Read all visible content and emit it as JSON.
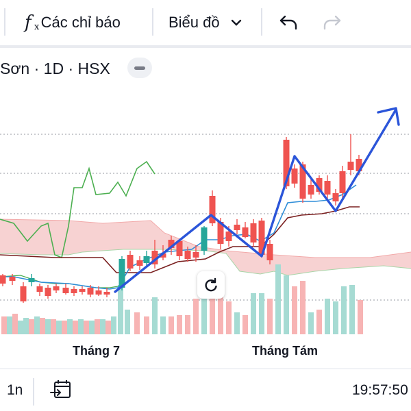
{
  "toolbar": {
    "indicators_label": "Các chỉ báo",
    "chart_type_label": "Biểu đồ",
    "icons": [
      "fx-icon",
      "chevron-down-icon",
      "undo-icon",
      "redo-icon"
    ]
  },
  "symbol": {
    "text": "Sơn · 1D · HSX"
  },
  "chart": {
    "x_labels": [
      "Tháng 7",
      "Tháng Tám"
    ],
    "colors": {
      "up": "#26a69a",
      "down": "#ef5350",
      "cloud": "#f7d2d2",
      "lagging": "#4caf50",
      "base_line": "#7a1f1f",
      "conversion_line": "#2f8ed8",
      "pattern": "#2b55d9"
    }
  },
  "bottom": {
    "interval": "1n",
    "time": "19:57:50"
  }
}
